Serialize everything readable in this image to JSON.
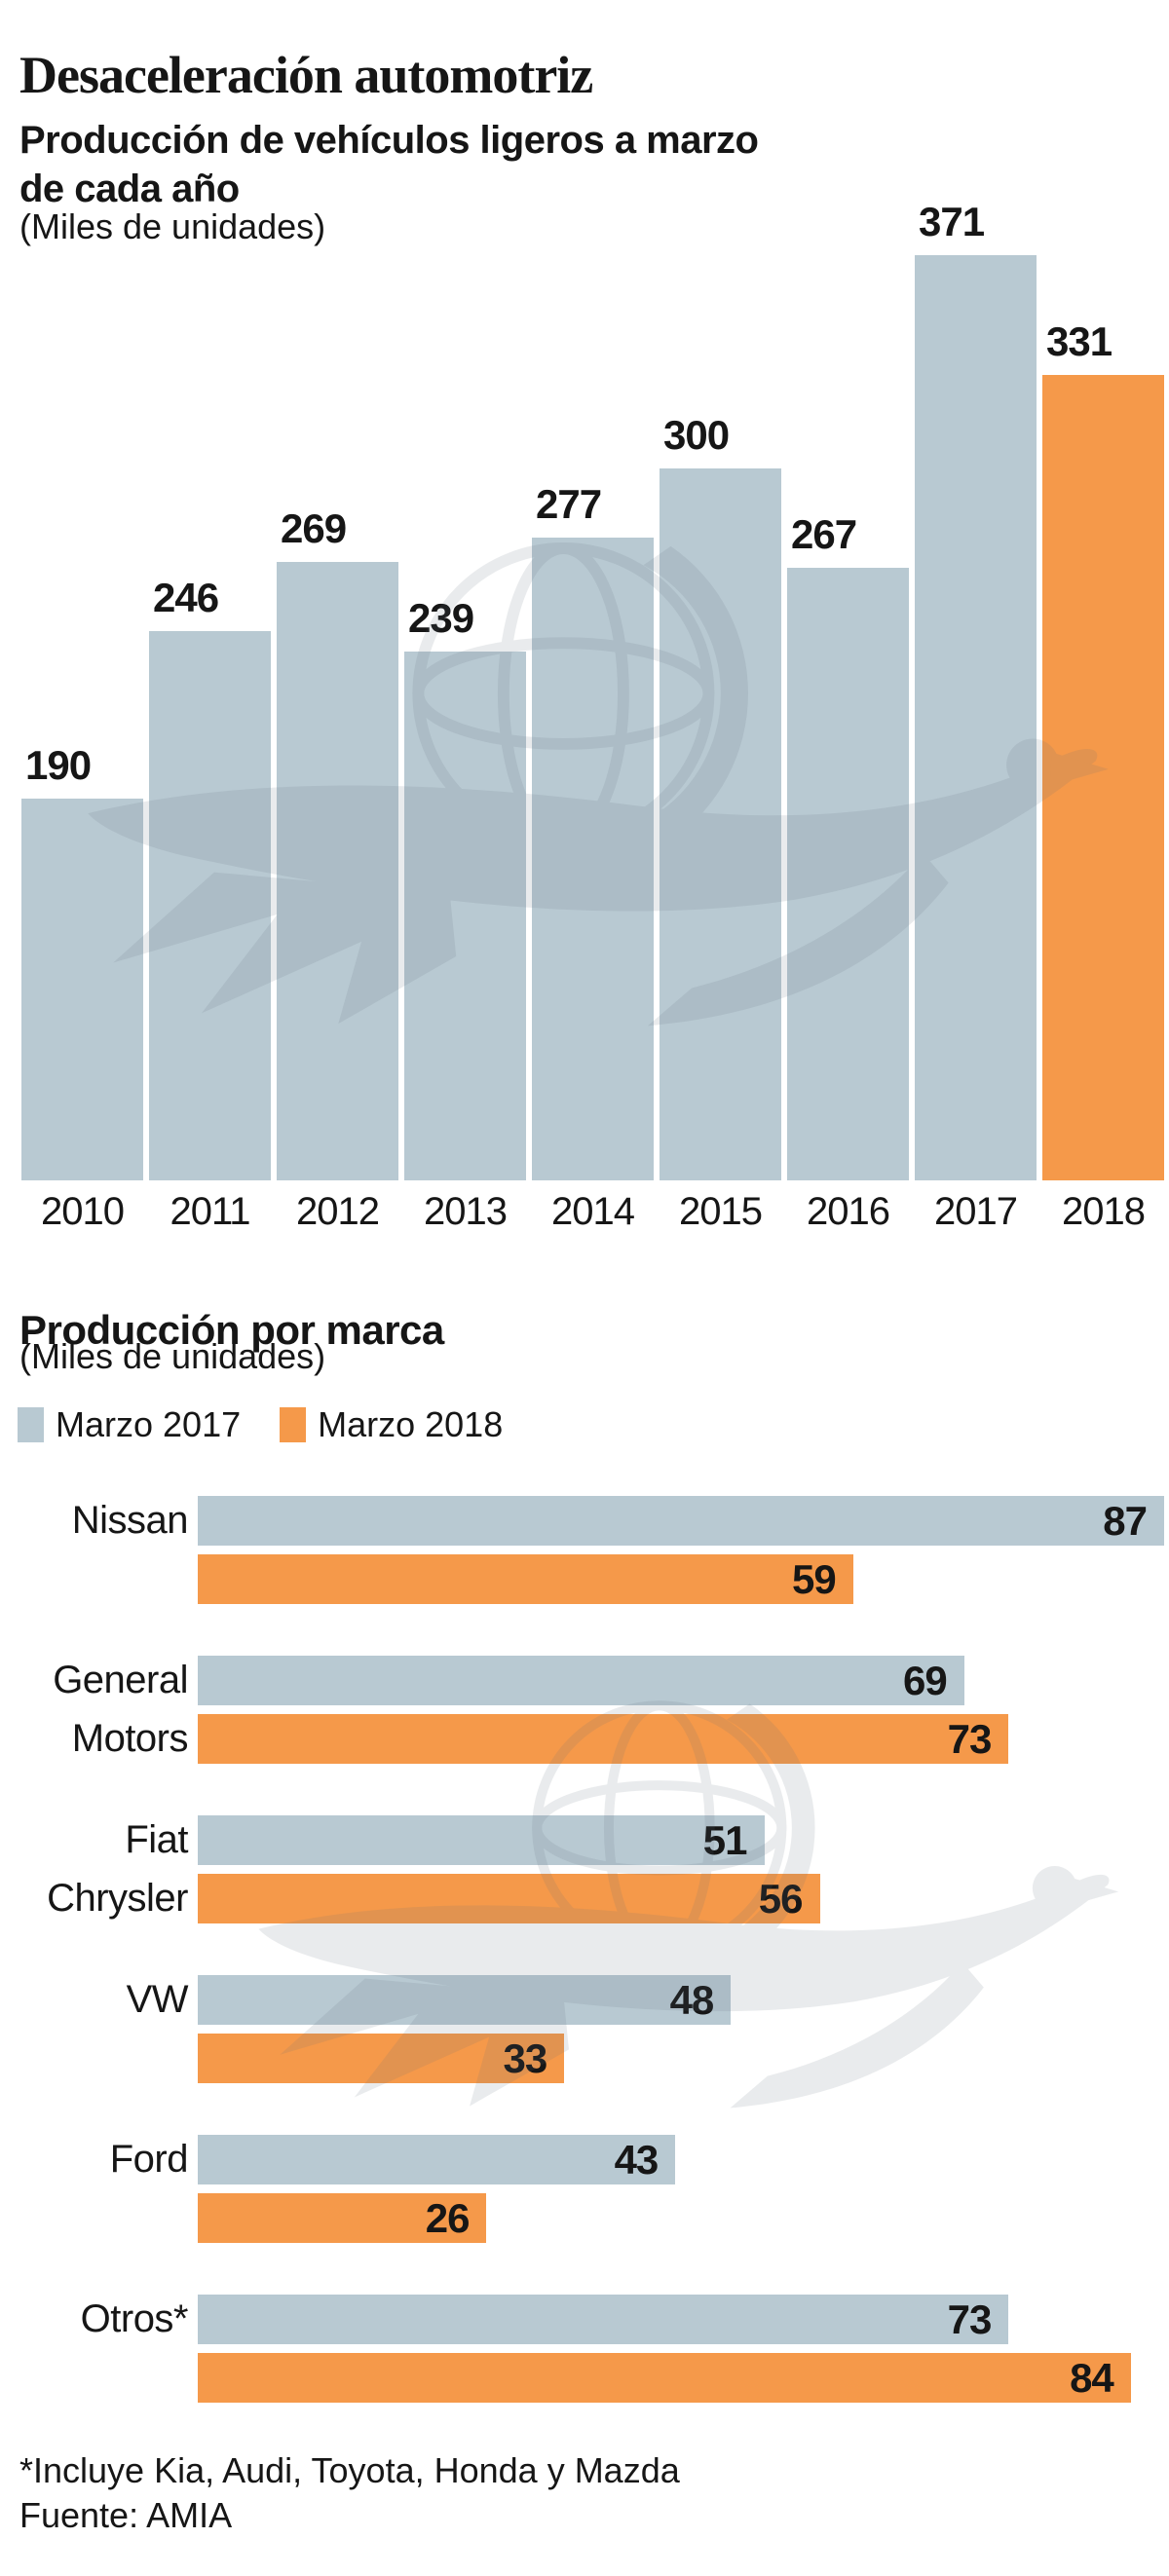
{
  "header": {
    "title": "Desaceleración automotriz",
    "subtitle_lines": [
      "Producción de vehículos ligeros a marzo",
      "de cada año"
    ],
    "units_note": "(Miles de unidades)"
  },
  "section2": {
    "title": "Producción por marca",
    "units_note": "(Miles de unidades)",
    "legend": [
      {
        "label": "Marzo 2017",
        "color": "#b8c9d2"
      },
      {
        "label": "Marzo 2018",
        "color": "#f5994a"
      }
    ]
  },
  "footer": {
    "note": "*Incluye Kia, Audi, Toyota, Honda y Mazda",
    "source": "Fuente: AMIA"
  },
  "colors": {
    "bar_blue": "#b8c9d2",
    "bar_orange": "#f5994a",
    "text": "#161616",
    "watermark": "#5f6d78"
  },
  "watermark": "el-universal-eagle-globe",
  "chart_data": [
    {
      "type": "bar",
      "title": "Producción de vehículos ligeros a marzo de cada año",
      "units": "Miles de unidades",
      "categories": [
        "2010",
        "2011",
        "2012",
        "2013",
        "2014",
        "2015",
        "2016",
        "2017",
        "2018"
      ],
      "values": [
        190,
        246,
        269,
        239,
        277,
        300,
        267,
        371,
        331
      ],
      "highlight_category": "2018",
      "bar_color": "#b8c9d2",
      "highlight_color": "#f5994a",
      "ylim": [
        63,
        371
      ],
      "grid": false,
      "value_labels": true,
      "xlabel": "",
      "ylabel": ""
    },
    {
      "type": "bar",
      "orientation": "horizontal",
      "title": "Producción por marca",
      "units": "Miles de unidades",
      "categories": [
        "Nissan",
        "General Motors",
        "Fiat Chrysler",
        "VW",
        "Ford",
        "Otros*"
      ],
      "category_label_lines": [
        [
          "Nissan"
        ],
        [
          "General",
          "Motors"
        ],
        [
          "Fiat",
          "Chrysler"
        ],
        [
          "VW"
        ],
        [
          "Ford"
        ],
        [
          "Otros*"
        ]
      ],
      "series": [
        {
          "name": "Marzo 2017",
          "color": "#b8c9d2",
          "values": [
            87,
            69,
            51,
            48,
            43,
            73
          ]
        },
        {
          "name": "Marzo 2018",
          "color": "#f5994a",
          "values": [
            59,
            73,
            56,
            33,
            26,
            84
          ]
        }
      ],
      "xlim": [
        0,
        87
      ],
      "grid": false,
      "value_labels": true,
      "legend_position": "top"
    }
  ]
}
